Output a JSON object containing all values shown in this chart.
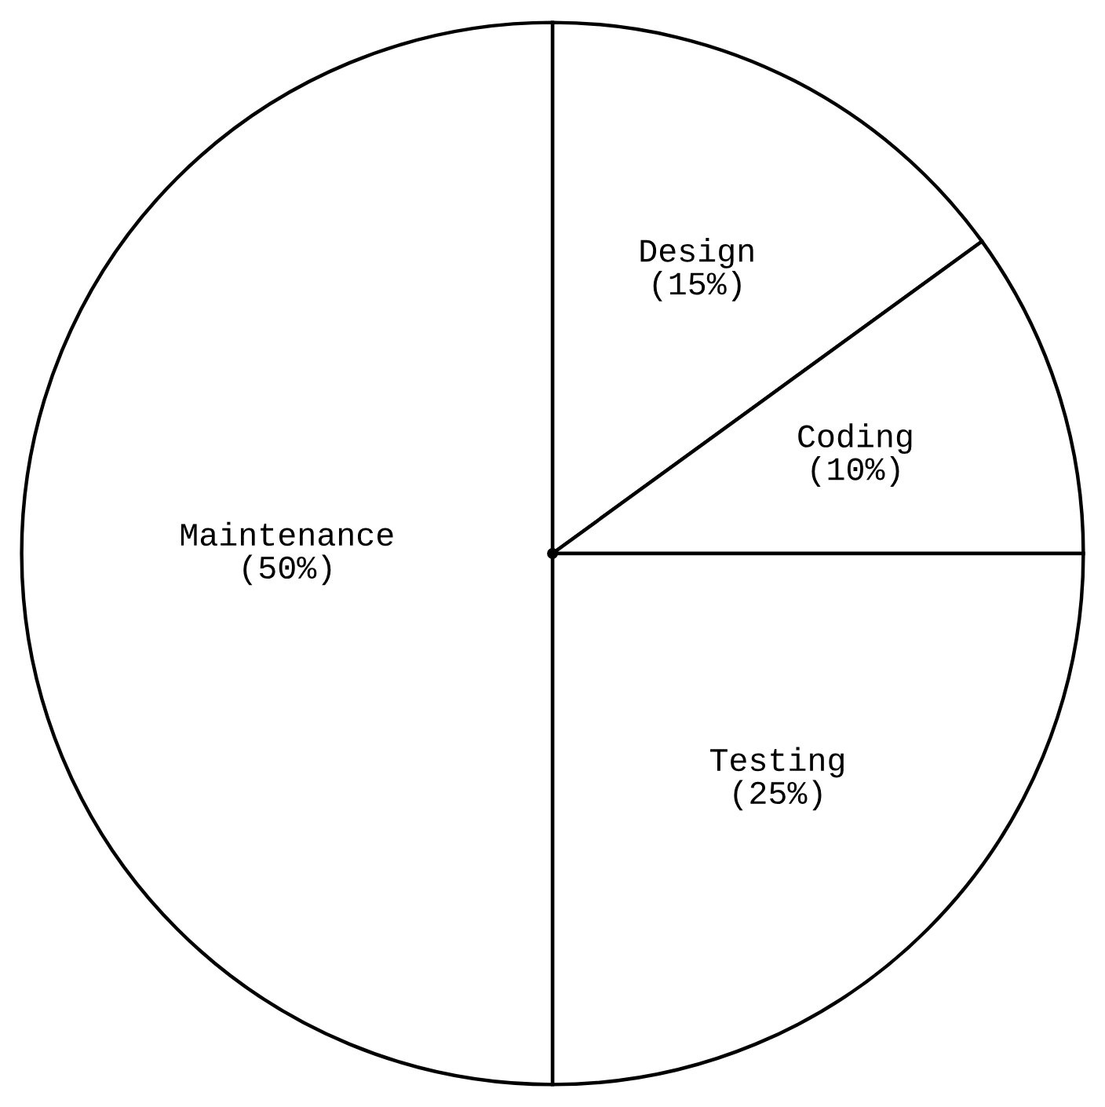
{
  "chart_data": {
    "type": "pie",
    "categories": [
      "Design",
      "Coding",
      "Testing",
      "Maintenance"
    ],
    "values": [
      15,
      10,
      25,
      50
    ],
    "value_labels": [
      "(15%)",
      "(10%)",
      "(25%)",
      "(50%)"
    ],
    "colors": [
      "#ffffff",
      "#ffffff",
      "#ffffff",
      "#ffffff"
    ],
    "legend": false
  }
}
